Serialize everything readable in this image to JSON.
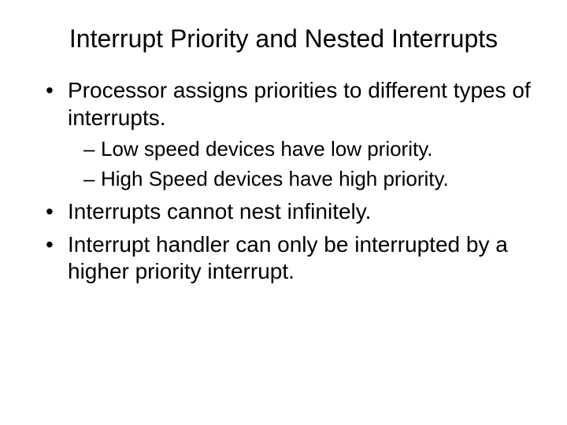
{
  "title": "Interrupt Priority and Nested Interrupts",
  "bullets": {
    "b0": "Processor assigns priorities to different types of interrupts.",
    "b0_sub0": "Low speed devices have low priority.",
    "b0_sub1": "High Speed devices have high priority.",
    "b1": "Interrupts cannot nest infinitely.",
    "b2": "Interrupt handler can only be interrupted by a higher priority interrupt."
  },
  "style": {
    "background": "#ffffff",
    "text_color": "#000000",
    "title_fontsize": 32,
    "body_fontsize": 28,
    "sub_fontsize": 26,
    "font_family": "Arial"
  }
}
